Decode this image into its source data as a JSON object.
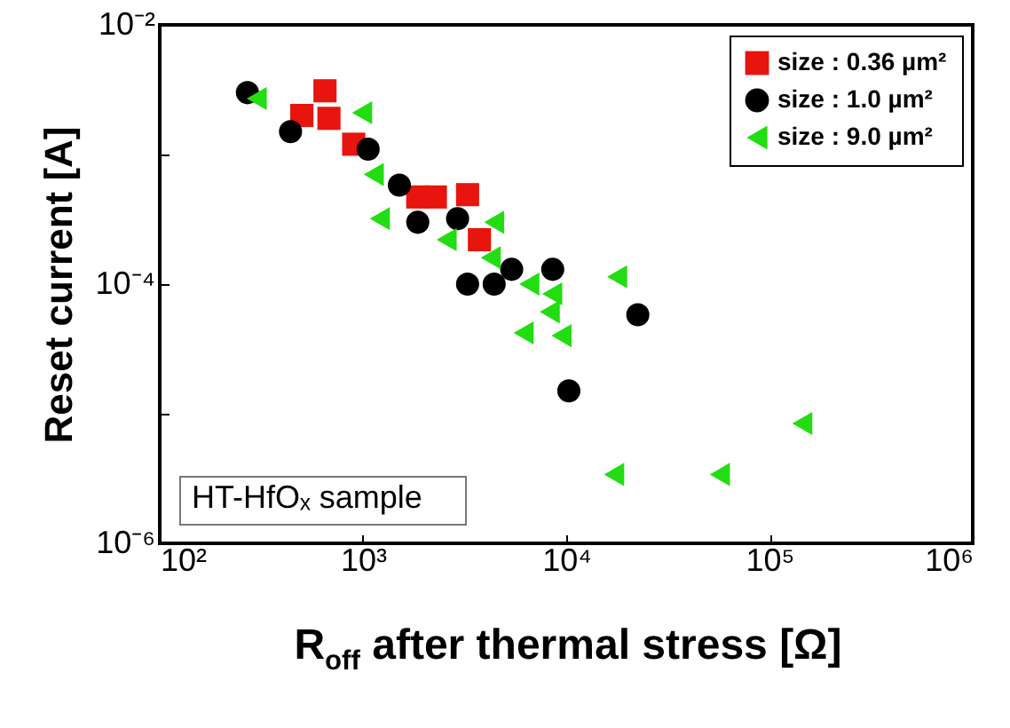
{
  "chart_data": {
    "type": "scatter",
    "xlabel": "R$_{off}$ after thermal stress [Ω]",
    "ylabel": "Reset current [A]",
    "log": "xy",
    "grid": false,
    "legend": "top right",
    "xlim": [
      100,
      1000000
    ],
    "ylim": [
      1e-06,
      0.01
    ],
    "xticks": [
      {
        "value": 100,
        "label": "10²"
      },
      {
        "value": 1000,
        "label": "10³"
      },
      {
        "value": 10000,
        "label": "10⁴"
      },
      {
        "value": 100000,
        "label": "10⁵"
      },
      {
        "value": 1000000,
        "label": "10⁶"
      }
    ],
    "yticks": [
      {
        "value": 1e-06,
        "label": "10⁻⁶"
      },
      {
        "value": 1e-05,
        "label": null
      },
      {
        "value": 0.0001,
        "label": "10⁻⁴"
      },
      {
        "value": 0.001,
        "label": null
      },
      {
        "value": 0.01,
        "label": "10⁻²"
      }
    ],
    "annotations": [
      "HT-HfOₓ sample"
    ],
    "series": [
      {
        "name": "size : 0.36 µm²",
        "color": "#e8140e",
        "marker": "square",
        "x": [
          500,
          650,
          680,
          900,
          1860,
          2270,
          3270,
          3740
        ],
        "values": [
          0.002,
          0.0031,
          0.0019,
          0.0012,
          0.00047,
          0.00047,
          0.00049,
          0.00022
        ]
      },
      {
        "name": "size : 1.0 µm²",
        "color": "#000000",
        "marker": "circle",
        "x": [
          270,
          440,
          1060,
          1510,
          1860,
          2920,
          3270,
          4420,
          5390,
          8580,
          22500,
          10300
        ],
        "values": [
          0.003,
          0.0015,
          0.0011,
          0.00058,
          0.0003,
          0.00032,
          0.0001,
          0.0001,
          0.00013,
          0.00013,
          5.8e-05,
          1.5e-05
        ]
      },
      {
        "name": "size : 9.0 µm²",
        "color": "#22dd11",
        "marker": "triangle",
        "x": [
          300,
          990,
          1130,
          1210,
          2580,
          4420,
          4250,
          6580,
          6170,
          8300,
          9480,
          8530,
          17800,
          145000,
          17200,
          57000
        ],
        "values": [
          0.0027,
          0.0021,
          0.0007,
          0.00032,
          0.00022,
          0.0003,
          0.00016,
          0.0001,
          4.2e-05,
          6.1e-05,
          4e-05,
          8.4e-05,
          0.000114,
          8.4e-06,
          3.4e-06,
          3.4e-06
        ]
      }
    ]
  }
}
